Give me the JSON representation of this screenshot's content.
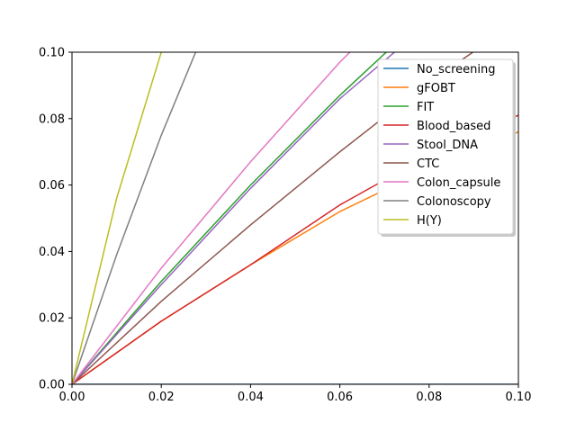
{
  "chart_data": {
    "type": "line",
    "title": "",
    "xlabel": "",
    "ylabel": "",
    "xlim": [
      0,
      0.1
    ],
    "ylim": [
      0,
      0.1
    ],
    "xticks": [
      "0.00",
      "0.02",
      "0.04",
      "0.06",
      "0.08",
      "0.10"
    ],
    "yticks": [
      "0.00",
      "0.02",
      "0.04",
      "0.06",
      "0.08",
      "0.10"
    ],
    "grid": false,
    "legend_position": "upper right",
    "series": [
      {
        "name": "No_screening",
        "color": "#1f77b4",
        "points": [
          [
            0,
            0
          ],
          [
            0.1,
            0
          ]
        ]
      },
      {
        "name": "gFOBT",
        "color": "#ff7f0e",
        "points": [
          [
            0,
            0
          ],
          [
            0.02,
            0.019
          ],
          [
            0.04,
            0.036
          ],
          [
            0.06,
            0.052
          ],
          [
            0.08,
            0.065
          ],
          [
            0.1,
            0.076
          ]
        ]
      },
      {
        "name": "FIT",
        "color": "#2ca02c",
        "points": [
          [
            0,
            0
          ],
          [
            0.02,
            0.031
          ],
          [
            0.04,
            0.06
          ],
          [
            0.06,
            0.087
          ],
          [
            0.072,
            0.102
          ]
        ]
      },
      {
        "name": "Blood_based",
        "color": "#d62728",
        "points": [
          [
            0,
            0
          ],
          [
            0.02,
            0.019
          ],
          [
            0.04,
            0.036
          ],
          [
            0.06,
            0.054
          ],
          [
            0.08,
            0.069
          ],
          [
            0.1,
            0.081
          ]
        ]
      },
      {
        "name": "Stool_DNA",
        "color": "#9467bd",
        "points": [
          [
            0,
            0
          ],
          [
            0.02,
            0.03
          ],
          [
            0.04,
            0.059
          ],
          [
            0.06,
            0.086
          ],
          [
            0.074,
            0.102
          ]
        ]
      },
      {
        "name": "CTC",
        "color": "#8c564b",
        "points": [
          [
            0,
            0
          ],
          [
            0.02,
            0.025
          ],
          [
            0.04,
            0.048
          ],
          [
            0.06,
            0.07
          ],
          [
            0.08,
            0.091
          ],
          [
            0.092,
            0.102
          ]
        ]
      },
      {
        "name": "Colon_capsule",
        "color": "#e377c2",
        "points": [
          [
            0,
            0
          ],
          [
            0.02,
            0.035
          ],
          [
            0.04,
            0.067
          ],
          [
            0.06,
            0.097
          ],
          [
            0.063,
            0.101
          ]
        ]
      },
      {
        "name": "Colonoscopy",
        "color": "#7f7f7f",
        "points": [
          [
            0,
            0
          ],
          [
            0.01,
            0.039
          ],
          [
            0.02,
            0.075
          ],
          [
            0.028,
            0.101
          ]
        ]
      },
      {
        "name": "H(Y)",
        "color": "#bcbd22",
        "points": [
          [
            0,
            0
          ],
          [
            0.01,
            0.056
          ],
          [
            0.02,
            0.1
          ],
          [
            0.0203,
            0.101
          ]
        ]
      }
    ]
  }
}
